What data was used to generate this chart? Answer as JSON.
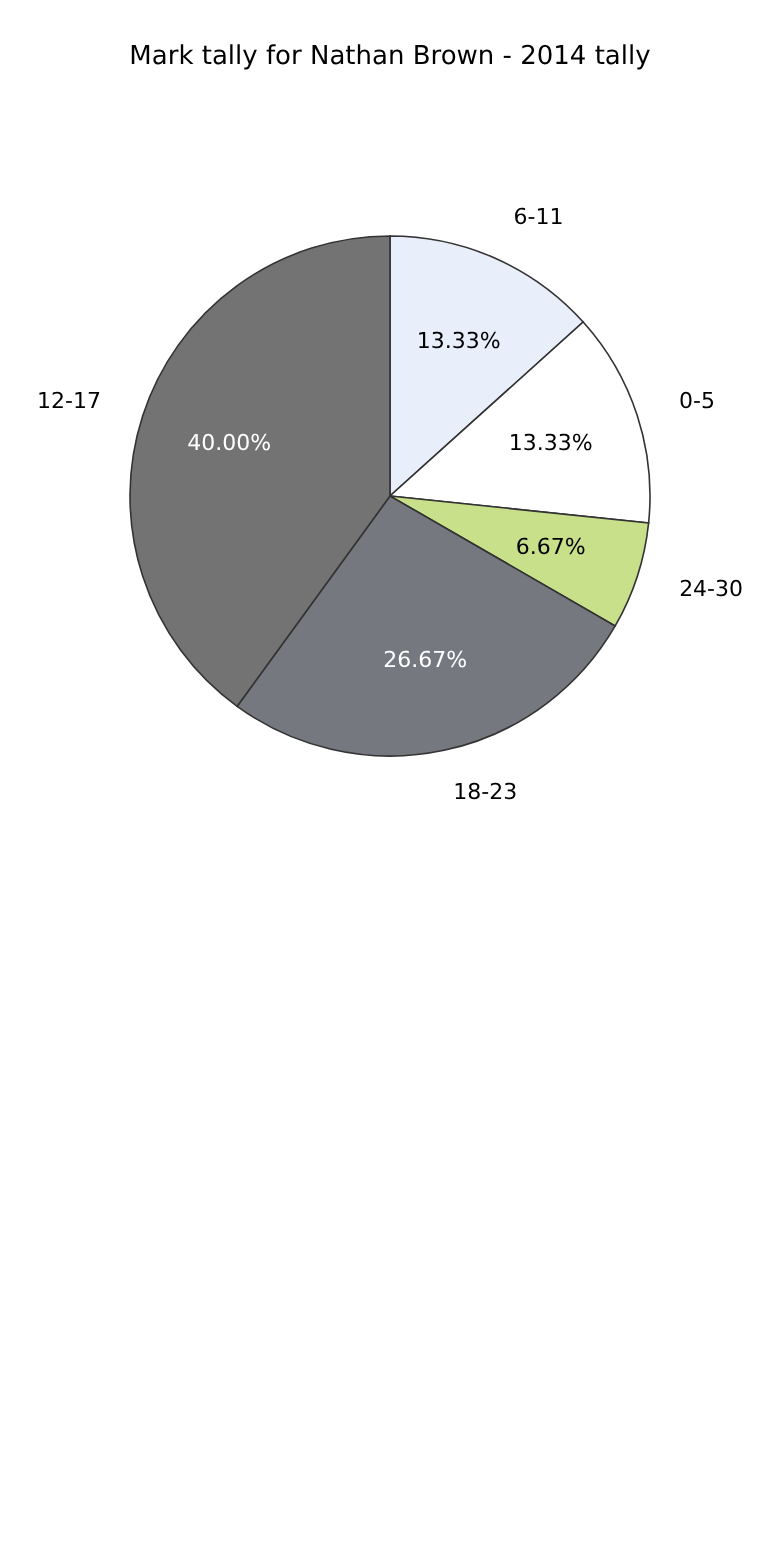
{
  "chart_data": {
    "type": "pie",
    "title": "Mark tally for Nathan Brown - 2014 tally",
    "categories": [
      "6-11",
      "0-5",
      "24-30",
      "18-23",
      "12-17"
    ],
    "values": [
      13.33,
      13.33,
      6.67,
      26.67,
      40.0
    ],
    "colors": [
      "#e8eefa",
      "#ffffff",
      "#c8e08a",
      "#75787f",
      "#737373"
    ],
    "value_labels": [
      "13.33%",
      "13.33%",
      "6.67%",
      "26.67%",
      "40.00%"
    ],
    "legend": false
  }
}
